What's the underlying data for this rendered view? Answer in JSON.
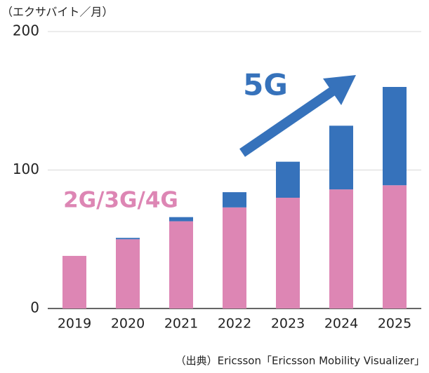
{
  "chart_data": {
    "type": "stacked_bar",
    "y_label": "（エクサバイト／月）",
    "source": "（出典）Ericsson「Ericsson Mobility Visualizer」",
    "categories": [
      "2019",
      "2020",
      "2021",
      "2022",
      "2023",
      "2024",
      "2025"
    ],
    "series": [
      {
        "name": "2G/3G/4G",
        "color": "#dd86b4",
        "values": [
          38,
          50,
          63,
          73,
          80,
          86,
          89
        ]
      },
      {
        "name": "5G",
        "color": "#3672bb",
        "values": [
          0,
          1,
          3,
          11,
          26,
          46,
          71
        ]
      }
    ],
    "ylim": [
      0,
      200
    ],
    "yticks": [
      0,
      100,
      200
    ],
    "grid": true
  }
}
